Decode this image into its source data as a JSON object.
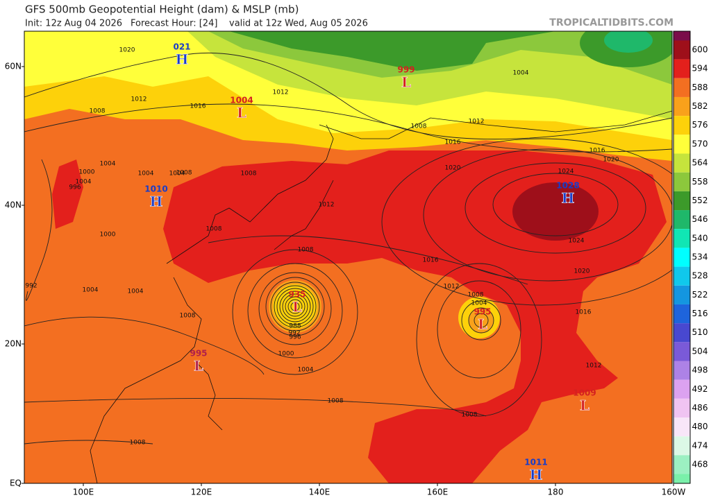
{
  "header": {
    "title": "GFS 500mb Geopotential Height (dam) & MSLP (mb)",
    "init": "Init: 12z Aug 04 2026",
    "forecast_hour": "Forecast Hour: [24]",
    "valid": "valid at 12z Wed, Aug 05 2026",
    "site": "TROPICALTIDBITS.COM"
  },
  "lat_labels": [
    "60N",
    "40N",
    "20N",
    "EQ"
  ],
  "lon_labels": [
    "100E",
    "120E",
    "140E",
    "160E",
    "180",
    "160W"
  ],
  "colorbar": {
    "levels": [
      600,
      594,
      588,
      582,
      576,
      570,
      564,
      558,
      552,
      546,
      540,
      534,
      528,
      522,
      516,
      510,
      504,
      498,
      492,
      486,
      480,
      474,
      468
    ],
    "colors": [
      "#9e0f1a",
      "#e3201c",
      "#f36f21",
      "#f9a11b",
      "#fdd10a",
      "#ffff3a",
      "#c6e43c",
      "#8cc83c",
      "#3c9a2a",
      "#1fb86a",
      "#10e6b4",
      "#00ffff",
      "#10c8ec",
      "#1496e0",
      "#1e64dc",
      "#4848d0",
      "#7a5ad8",
      "#ad82e6",
      "#dca2f0",
      "#f0c4f2",
      "#f8e6f8",
      "#dcf8e6",
      "#9cf0c2"
    ]
  },
  "centers": [
    {
      "value": "021",
      "label": "H"
    },
    {
      "value": "999",
      "label": "L"
    },
    {
      "value": "1004",
      "label": "L"
    },
    {
      "value": "1010",
      "label": "H"
    },
    {
      "value": "1028",
      "label": "H"
    },
    {
      "value": "935",
      "label": "L"
    },
    {
      "value": "995",
      "label": "L"
    },
    {
      "value": "995",
      "label": "L"
    },
    {
      "value": "1009",
      "label": "L"
    },
    {
      "value": "1011",
      "label": "H"
    }
  ],
  "isobar_labels": [
    "1020",
    "1012",
    "1016",
    "1008",
    "1012",
    "1004",
    "1008",
    "1004",
    "1008",
    "1004",
    "1000",
    "996",
    "1008",
    "1000",
    "1012",
    "1008",
    "1004",
    "1020",
    "1016",
    "1016",
    "1020",
    "1024",
    "1024",
    "1016",
    "1012",
    "1020",
    "1016",
    "1012",
    "1008",
    "1004",
    "1000",
    "996",
    "992",
    "988",
    "1004",
    "1008",
    "1008",
    "1008",
    "1004",
    "1008",
    "1012",
    "1004",
    "1004",
    "1008",
    "992"
  ]
}
